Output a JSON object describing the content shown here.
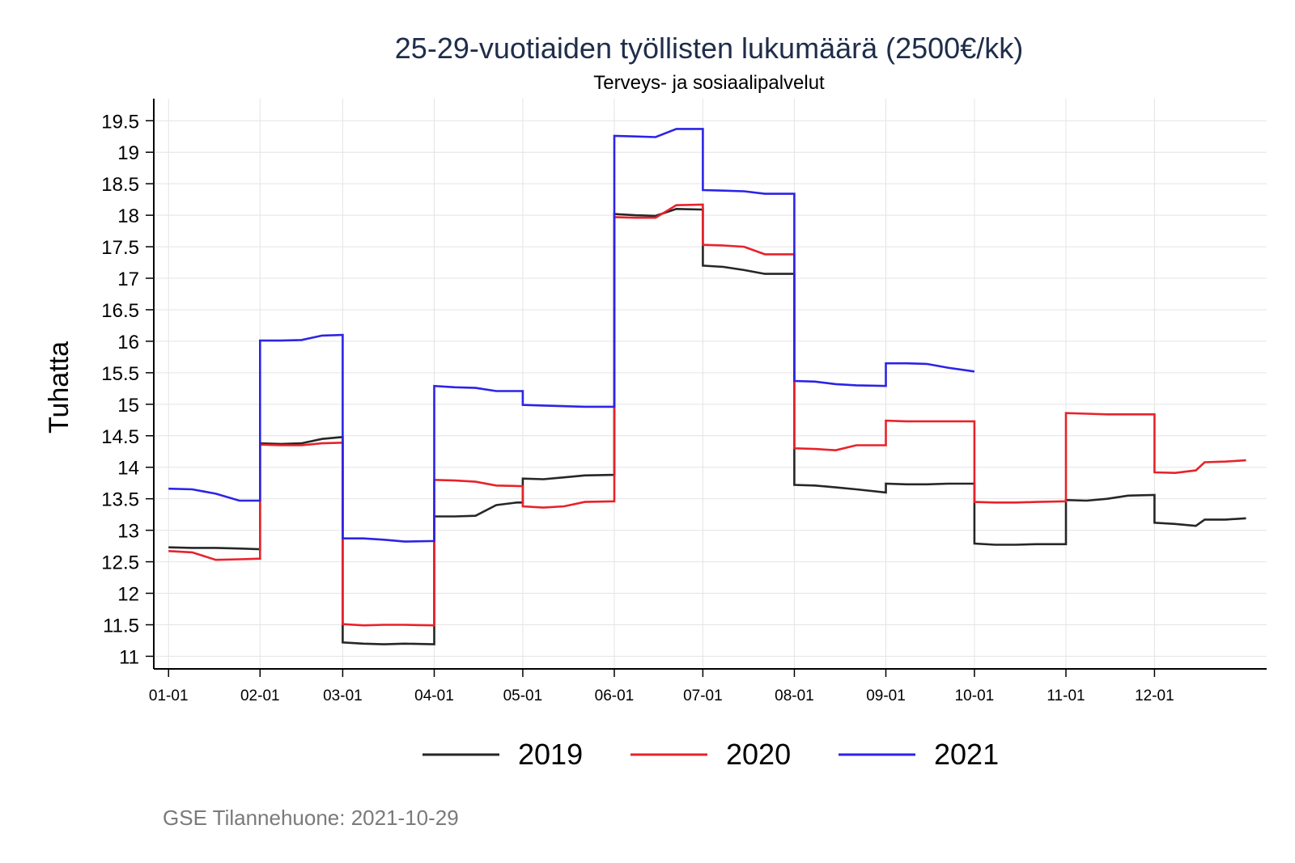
{
  "chart_data": {
    "type": "line",
    "title": "25-29-vuotiaiden työllisten lukumäärä (2500€/kk)",
    "subtitle": "Terveys- ja sosiaalipalvelut",
    "ylabel": "Tuhatta",
    "xlabel": "",
    "ylim": [
      10.8,
      19.85
    ],
    "y_ticks": [
      "11",
      "11.5",
      "12",
      "12.5",
      "13",
      "13.5",
      "14",
      "14.5",
      "15",
      "15.5",
      "16",
      "16.5",
      "17",
      "17.5",
      "18",
      "18.5",
      "19",
      "19.5"
    ],
    "x_ticks": [
      "01-01",
      "02-01",
      "03-01",
      "04-01",
      "05-01",
      "06-01",
      "07-01",
      "08-01",
      "09-01",
      "10-01",
      "11-01",
      "12-01"
    ],
    "x_unit": "day of year",
    "xlim": [
      -5,
      372
    ],
    "grid": true,
    "legend_position": "bottom",
    "series": [
      {
        "name": "2019",
        "color": "#262626",
        "points": [
          [
            0,
            12.73
          ],
          [
            8,
            12.72
          ],
          [
            16,
            12.72
          ],
          [
            24,
            12.71
          ],
          [
            31,
            12.7
          ],
          [
            31,
            14.38
          ],
          [
            38,
            14.37
          ],
          [
            45,
            14.38
          ],
          [
            52,
            14.45
          ],
          [
            59,
            14.48
          ],
          [
            59,
            11.22
          ],
          [
            66,
            11.2
          ],
          [
            73,
            11.19
          ],
          [
            80,
            11.2
          ],
          [
            90,
            11.19
          ],
          [
            90,
            13.22
          ],
          [
            97,
            13.22
          ],
          [
            104,
            13.23
          ],
          [
            111,
            13.4
          ],
          [
            118,
            13.44
          ],
          [
            120,
            13.44
          ],
          [
            120,
            13.82
          ],
          [
            127,
            13.81
          ],
          [
            134,
            13.84
          ],
          [
            141,
            13.87
          ],
          [
            151,
            13.88
          ],
          [
            151,
            18.02
          ],
          [
            158,
            18.0
          ],
          [
            165,
            17.99
          ],
          [
            172,
            18.1
          ],
          [
            181,
            18.09
          ],
          [
            181,
            17.2
          ],
          [
            188,
            17.18
          ],
          [
            195,
            17.13
          ],
          [
            202,
            17.07
          ],
          [
            212,
            17.07
          ],
          [
            212,
            13.72
          ],
          [
            219,
            13.71
          ],
          [
            226,
            13.68
          ],
          [
            233,
            13.65
          ],
          [
            243,
            13.6
          ],
          [
            243,
            13.74
          ],
          [
            250,
            13.73
          ],
          [
            257,
            13.73
          ],
          [
            264,
            13.74
          ],
          [
            273,
            13.74
          ],
          [
            273,
            12.79
          ],
          [
            280,
            12.77
          ],
          [
            287,
            12.77
          ],
          [
            294,
            12.78
          ],
          [
            304,
            12.78
          ],
          [
            304,
            13.48
          ],
          [
            311,
            13.47
          ],
          [
            318,
            13.5
          ],
          [
            325,
            13.55
          ],
          [
            334,
            13.56
          ],
          [
            334,
            13.12
          ],
          [
            341,
            13.1
          ],
          [
            348,
            13.07
          ],
          [
            351,
            13.17
          ],
          [
            358,
            13.17
          ],
          [
            365,
            13.19
          ]
        ]
      },
      {
        "name": "2020",
        "color": "#e8222a",
        "points": [
          [
            0,
            12.67
          ],
          [
            8,
            12.65
          ],
          [
            16,
            12.53
          ],
          [
            24,
            12.54
          ],
          [
            31,
            12.55
          ],
          [
            31,
            14.36
          ],
          [
            38,
            14.35
          ],
          [
            45,
            14.35
          ],
          [
            52,
            14.38
          ],
          [
            59,
            14.39
          ],
          [
            59,
            11.51
          ],
          [
            66,
            11.49
          ],
          [
            73,
            11.5
          ],
          [
            80,
            11.5
          ],
          [
            90,
            11.49
          ],
          [
            90,
            13.8
          ],
          [
            97,
            13.79
          ],
          [
            104,
            13.77
          ],
          [
            111,
            13.71
          ],
          [
            120,
            13.7
          ],
          [
            120,
            13.38
          ],
          [
            127,
            13.36
          ],
          [
            134,
            13.38
          ],
          [
            141,
            13.45
          ],
          [
            151,
            13.46
          ],
          [
            151,
            17.97
          ],
          [
            158,
            17.96
          ],
          [
            165,
            17.96
          ],
          [
            172,
            18.16
          ],
          [
            181,
            18.17
          ],
          [
            181,
            17.53
          ],
          [
            188,
            17.52
          ],
          [
            195,
            17.5
          ],
          [
            202,
            17.38
          ],
          [
            212,
            17.38
          ],
          [
            212,
            14.3
          ],
          [
            219,
            14.29
          ],
          [
            226,
            14.27
          ],
          [
            233,
            14.35
          ],
          [
            243,
            14.35
          ],
          [
            243,
            14.74
          ],
          [
            250,
            14.73
          ],
          [
            257,
            14.73
          ],
          [
            264,
            14.73
          ],
          [
            273,
            14.73
          ],
          [
            273,
            13.45
          ],
          [
            280,
            13.44
          ],
          [
            287,
            13.44
          ],
          [
            294,
            13.45
          ],
          [
            304,
            13.46
          ],
          [
            304,
            14.86
          ],
          [
            311,
            14.85
          ],
          [
            318,
            14.84
          ],
          [
            325,
            14.84
          ],
          [
            334,
            14.84
          ],
          [
            334,
            13.92
          ],
          [
            341,
            13.91
          ],
          [
            348,
            13.95
          ],
          [
            351,
            14.08
          ],
          [
            358,
            14.09
          ],
          [
            365,
            14.11
          ]
        ]
      },
      {
        "name": "2021",
        "color": "#2c24e6",
        "points": [
          [
            0,
            13.66
          ],
          [
            8,
            13.65
          ],
          [
            16,
            13.58
          ],
          [
            24,
            13.47
          ],
          [
            31,
            13.47
          ],
          [
            31,
            16.01
          ],
          [
            38,
            16.01
          ],
          [
            45,
            16.02
          ],
          [
            52,
            16.09
          ],
          [
            59,
            16.1
          ],
          [
            59,
            12.87
          ],
          [
            66,
            12.87
          ],
          [
            73,
            12.85
          ],
          [
            80,
            12.82
          ],
          [
            90,
            12.83
          ],
          [
            90,
            15.29
          ],
          [
            97,
            15.27
          ],
          [
            104,
            15.26
          ],
          [
            111,
            15.21
          ],
          [
            120,
            15.21
          ],
          [
            120,
            14.99
          ],
          [
            127,
            14.98
          ],
          [
            134,
            14.97
          ],
          [
            141,
            14.96
          ],
          [
            151,
            14.96
          ],
          [
            151,
            19.26
          ],
          [
            158,
            19.25
          ],
          [
            165,
            19.24
          ],
          [
            172,
            19.37
          ],
          [
            181,
            19.37
          ],
          [
            181,
            18.4
          ],
          [
            188,
            18.39
          ],
          [
            195,
            18.38
          ],
          [
            202,
            18.34
          ],
          [
            212,
            18.34
          ],
          [
            212,
            15.37
          ],
          [
            219,
            15.36
          ],
          [
            226,
            15.32
          ],
          [
            233,
            15.3
          ],
          [
            243,
            15.29
          ],
          [
            243,
            15.65
          ],
          [
            250,
            15.65
          ],
          [
            257,
            15.64
          ],
          [
            264,
            15.58
          ],
          [
            273,
            15.52
          ]
        ]
      }
    ]
  },
  "footer": {
    "source": "GSE Tilannehuone: 2021-10-29"
  }
}
